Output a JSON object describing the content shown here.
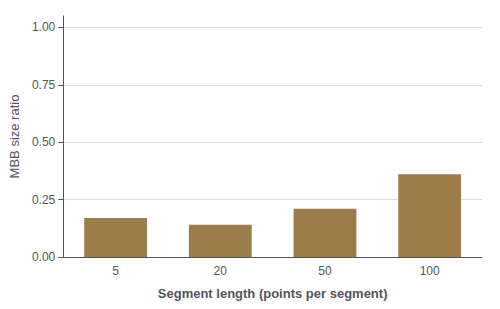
{
  "chart_data": {
    "type": "bar",
    "categories": [
      "5",
      "20",
      "50",
      "100"
    ],
    "values": [
      0.17,
      0.14,
      0.21,
      0.36
    ],
    "color": "#9b7d4a",
    "xlabel": "Segment length (points per segment)",
    "ylabel": "MBB size ratio",
    "ylim": [
      0.0,
      1.05
    ],
    "yticks": [
      {
        "value": 0.0,
        "label": "0.00"
      },
      {
        "value": 0.25,
        "label": "0.25"
      },
      {
        "value": 0.5,
        "label": "0.50"
      },
      {
        "value": 0.75,
        "label": "0.75"
      },
      {
        "value": 1.0,
        "label": "1.00"
      }
    ],
    "grid": true
  }
}
